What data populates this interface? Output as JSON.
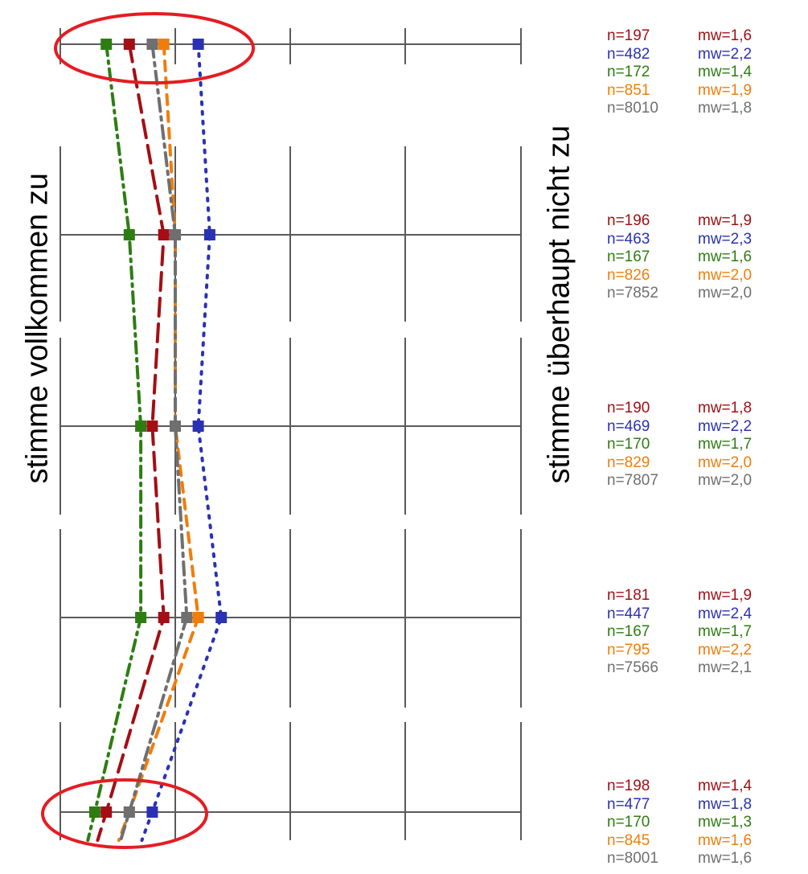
{
  "axis_labels": {
    "left": "stimme vollkommen zu",
    "right": "stimme überhaupt nicht zu"
  },
  "colors": {
    "grid": "#5a5a5a",
    "highlight": "#e51c23",
    "series": [
      "#a30f14",
      "#2a31b5",
      "#2e7d12",
      "#f07d0b",
      "#6f6f6f"
    ]
  },
  "chart_data": {
    "type": "line",
    "orientation": "vertical-profile",
    "x_range": [
      1,
      5
    ],
    "items": [
      1,
      2,
      3,
      4,
      5
    ],
    "grid": true,
    "highlighted_items": [
      1,
      5
    ],
    "series": [
      {
        "color": "#a30f14",
        "dash": "long-dash",
        "values": [
          1.6,
          1.9,
          1.8,
          1.9,
          1.4
        ]
      },
      {
        "color": "#2a31b5",
        "dash": "dotted",
        "values": [
          2.2,
          2.3,
          2.2,
          2.4,
          1.8
        ]
      },
      {
        "color": "#2e7d12",
        "dash": "dash-dot",
        "values": [
          1.4,
          1.6,
          1.7,
          1.7,
          1.3
        ]
      },
      {
        "color": "#f07d0b",
        "dash": "dashed",
        "values": [
          1.9,
          2.0,
          2.0,
          2.2,
          1.6
        ]
      },
      {
        "color": "#6f6f6f",
        "dash": "dash-dot-gray",
        "values": [
          1.8,
          2.0,
          2.0,
          2.1,
          1.6
        ]
      }
    ],
    "stats_groups": [
      [
        {
          "n": "n=197",
          "mw": "mw=1,6"
        },
        {
          "n": "n=482",
          "mw": "mw=2,2"
        },
        {
          "n": "n=172",
          "mw": "mw=1,4"
        },
        {
          "n": "n=851",
          "mw": "mw=1,9"
        },
        {
          "n": "n=8010",
          "mw": "mw=1,8"
        }
      ],
      [
        {
          "n": "n=196",
          "mw": "mw=1,9"
        },
        {
          "n": "n=463",
          "mw": "mw=2,3"
        },
        {
          "n": "n=167",
          "mw": "mw=1,6"
        },
        {
          "n": "n=826",
          "mw": "mw=2,0"
        },
        {
          "n": "n=7852",
          "mw": "mw=2,0"
        }
      ],
      [
        {
          "n": "n=190",
          "mw": "mw=1,8"
        },
        {
          "n": "n=469",
          "mw": "mw=2,2"
        },
        {
          "n": "n=170",
          "mw": "mw=1,7"
        },
        {
          "n": "n=829",
          "mw": "mw=2,0"
        },
        {
          "n": "n=7807",
          "mw": "mw=2,0"
        }
      ],
      [
        {
          "n": "n=181",
          "mw": "mw=1,9"
        },
        {
          "n": "n=447",
          "mw": "mw=2,4"
        },
        {
          "n": "n=167",
          "mw": "mw=1,7"
        },
        {
          "n": "n=795",
          "mw": "mw=2,2"
        },
        {
          "n": "n=7566",
          "mw": "mw=2,1"
        }
      ],
      [
        {
          "n": "n=198",
          "mw": "mw=1,4"
        },
        {
          "n": "n=477",
          "mw": "mw=1,8"
        },
        {
          "n": "n=170",
          "mw": "mw=1,3"
        },
        {
          "n": "n=845",
          "mw": "mw=1,6"
        },
        {
          "n": "n=8001",
          "mw": "mw=1,6"
        }
      ]
    ]
  }
}
